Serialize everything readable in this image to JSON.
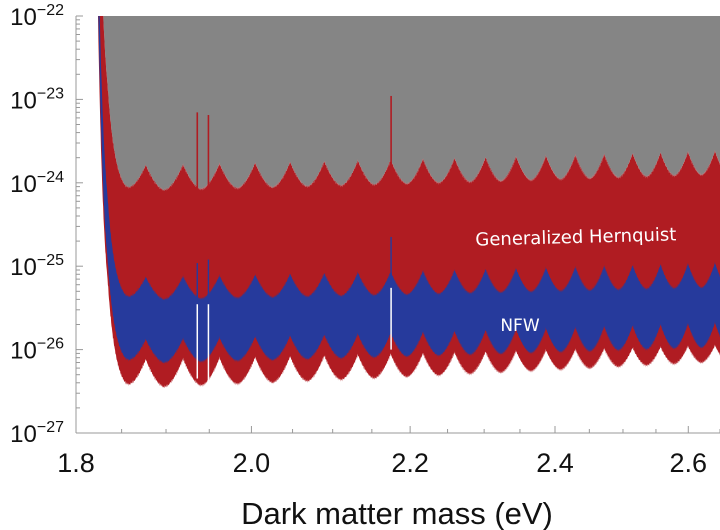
{
  "chart_data": {
    "type": "area",
    "title": "",
    "xlabel": "Dark matter mass (eV)",
    "ylabel": "",
    "x_scale": "log",
    "y_scale": "log",
    "xlim": [
      1.8,
      2.65
    ],
    "ylim": [
      1e-27,
      1e-22
    ],
    "grid": false,
    "x_ticks": [
      "1.8",
      "2.0",
      "2.2",
      "2.4",
      "2.6"
    ],
    "x_tick_values": [
      1.8,
      2.0,
      2.2,
      2.4,
      2.6
    ],
    "y_ticks": [
      {
        "value": 1e-22,
        "base": "10",
        "exp": "−22"
      },
      {
        "value": 1e-23,
        "base": "10",
        "exp": "−23"
      },
      {
        "value": 1e-24,
        "base": "10",
        "exp": "−24"
      },
      {
        "value": 1e-25,
        "base": "10",
        "exp": "−25"
      },
      {
        "value": 1e-26,
        "base": "10",
        "exp": "−26"
      },
      {
        "value": 1e-27,
        "base": "10",
        "exp": "−27"
      }
    ],
    "resonance_peaks_eV": {
      "first": 1.877,
      "spacing": 0.0425,
      "count": 19
    },
    "boundaries": [
      {
        "id": "excluded-upper",
        "trough": [
          8.1e-25,
          1.26e-24
        ],
        "peak": [
          1.62e-24,
          2.4e-24
        ]
      },
      {
        "id": "hernquist-nfw",
        "trough": [
          3.98e-26,
          5.6e-26
        ],
        "peak": [
          7.4e-26,
          1.1e-25
        ]
      },
      {
        "id": "nfw-lower",
        "trough": [
          6.9e-27,
          1.07e-26
        ],
        "peak": [
          1.32e-26,
          2.1e-26
        ]
      },
      {
        "id": "hernquist-lower",
        "trough": [
          3.5e-27,
          7.1e-27
        ],
        "peak": [
          7.6e-27,
          1.12e-26
        ]
      }
    ],
    "spikes": [
      {
        "x": 1.936,
        "top": 7e-24,
        "gap": [
          3.5e-26,
          4.5e-27
        ]
      },
      {
        "x": 1.949,
        "top": 6.5e-24,
        "gap": [
          3.5e-26,
          4e-27
        ]
      },
      {
        "x": 2.175,
        "top": 1.1e-23,
        "gap": [
          5.5e-26,
          1e-26
        ]
      }
    ],
    "series": [
      {
        "name": "Generalized Hernquist",
        "color": "#b01c22"
      },
      {
        "name": "NFW",
        "color": "#263a9c"
      }
    ],
    "excluded_color": "#858585"
  }
}
